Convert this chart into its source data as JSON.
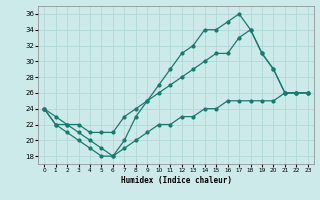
{
  "xlabel": "Humidex (Indice chaleur)",
  "xlim": [
    -0.5,
    23.5
  ],
  "ylim": [
    17,
    37
  ],
  "yticks": [
    18,
    20,
    22,
    24,
    26,
    28,
    30,
    32,
    34,
    36
  ],
  "xticks": [
    0,
    1,
    2,
    3,
    4,
    5,
    6,
    7,
    8,
    9,
    10,
    11,
    12,
    13,
    14,
    15,
    16,
    17,
    18,
    19,
    20,
    21,
    22,
    23
  ],
  "bg_color": "#cdeaea",
  "grid_color": "#b0d8d8",
  "line_color": "#1a7a6e",
  "line1_y": [
    24,
    22,
    21,
    20,
    19,
    18,
    18,
    20,
    23,
    25,
    27,
    29,
    31,
    32,
    34,
    34,
    35,
    36,
    34,
    31,
    29,
    26,
    26,
    26
  ],
  "line2_y": [
    24,
    23,
    22,
    22,
    21,
    21,
    21,
    23,
    24,
    25,
    26,
    27,
    28,
    29,
    30,
    31,
    31,
    33,
    34,
    31,
    29,
    26,
    26,
    26
  ],
  "line3_y": [
    24,
    22,
    22,
    21,
    20,
    19,
    18,
    19,
    20,
    21,
    22,
    22,
    23,
    23,
    24,
    24,
    25,
    25,
    25,
    25,
    25,
    26,
    26,
    26
  ]
}
